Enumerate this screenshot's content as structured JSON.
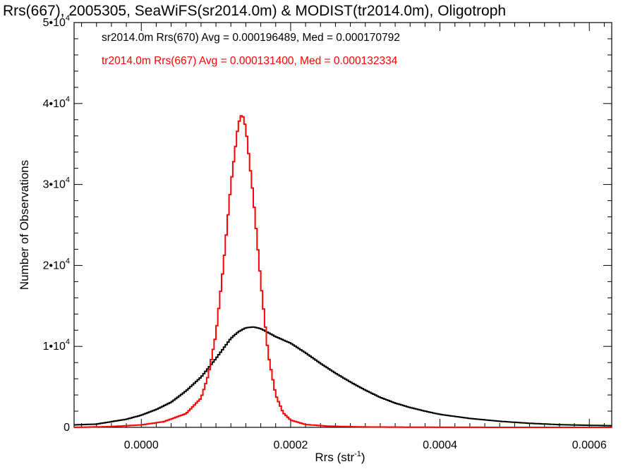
{
  "chart_data": {
    "type": "line",
    "title": "Rrs(667), 2005305, SeaWiFS(sr2014.0m) & MODIST(tr2014.0m), Oligotroph",
    "xlabel_main": "Rrs (str",
    "xlabel_sup": "-1",
    "xlabel_close": ")",
    "ylabel": "Number of Observations",
    "xlim": [
      -9e-05,
      0.00063
    ],
    "ylim": [
      0,
      50000
    ],
    "x_ticks": [
      {
        "value": 0.0,
        "label": "0.0000"
      },
      {
        "value": 0.0002,
        "label": "0.0002"
      },
      {
        "value": 0.0004,
        "label": "0.0004"
      },
      {
        "value": 0.0006,
        "label": "0.0006"
      }
    ],
    "y_ticks": [
      {
        "value": 0,
        "base": "0",
        "exp": ""
      },
      {
        "value": 10000,
        "base": "1•10",
        "exp": "4"
      },
      {
        "value": 20000,
        "base": "2•10",
        "exp": "4"
      },
      {
        "value": 30000,
        "base": "3•10",
        "exp": "4"
      },
      {
        "value": 40000,
        "base": "4•10",
        "exp": "4"
      },
      {
        "value": 50000,
        "base": "5•10",
        "exp": "4"
      }
    ],
    "grid": false,
    "legend_position": "top-left",
    "series": [
      {
        "name": "sr2014.0m Rrs(670) Avg = 0.000196489, Med = 0.000170792",
        "color": "#000000",
        "step": true,
        "x": [
          -9e-05,
          -6e-05,
          -4e-05,
          -2e-05,
          0.0,
          2e-05,
          4e-05,
          6e-05,
          8e-05,
          0.0001,
          0.00012,
          0.00013,
          0.00014,
          0.00015,
          0.00016,
          0.00018,
          0.0002,
          0.00022,
          0.00024,
          0.00026,
          0.00028,
          0.0003,
          0.00032,
          0.00034,
          0.00036,
          0.00038,
          0.0004,
          0.00044,
          0.00048,
          0.00052,
          0.00056,
          0.0006,
          0.00063
        ],
        "y": [
          300,
          400,
          700,
          1000,
          1500,
          2200,
          3100,
          4500,
          6200,
          8500,
          11000,
          11800,
          12300,
          12400,
          12200,
          11200,
          10400,
          9200,
          7900,
          6700,
          5600,
          4600,
          3700,
          3000,
          2450,
          2000,
          1600,
          1100,
          750,
          500,
          330,
          250,
          200
        ]
      },
      {
        "name": "tr2014.0m Rrs(667) Avg = 0.000131400, Med = 0.000132334",
        "color": "#ff0000",
        "step": true,
        "x": [
          -9e-05,
          -4e-05,
          0.0,
          3e-05,
          6e-05,
          8e-05,
          9e-05,
          0.0001,
          0.00011,
          0.00012,
          0.00013,
          0.000135,
          0.00014,
          0.00015,
          0.00016,
          0.00017,
          0.00018,
          0.00019,
          0.0002,
          0.00022,
          0.00025,
          0.0003,
          0.0004,
          0.0005,
          0.00063
        ],
        "y": [
          0,
          100,
          300,
          700,
          1700,
          3600,
          6500,
          11500,
          20000,
          30000,
          37500,
          38800,
          37000,
          28500,
          18000,
          9000,
          4000,
          1800,
          900,
          350,
          150,
          50,
          10,
          0,
          0
        ]
      }
    ]
  }
}
